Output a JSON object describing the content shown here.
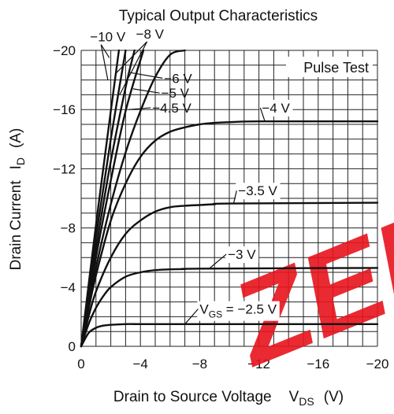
{
  "chart_data": {
    "type": "line",
    "title": "Typical Output Characteristics",
    "xlabel": {
      "text": "Drain to Source Voltage",
      "symbol": "V",
      "sub": "DS",
      "unit": "(V)"
    },
    "ylabel": {
      "text": "Drain Current",
      "symbol": "I",
      "sub": "D",
      "unit": "(A)"
    },
    "xlim": [
      0,
      -20
    ],
    "ylim": [
      0,
      -20
    ],
    "xticks": [
      0,
      -4,
      -8,
      -12,
      -16,
      -20
    ],
    "xtick_labels": [
      "0",
      "−4",
      "−8",
      "−12",
      "−16",
      "−20"
    ],
    "yticks": [
      0,
      -4,
      -8,
      -12,
      -16,
      -20
    ],
    "ytick_labels": [
      "0",
      "−4",
      "−8",
      "−12",
      "−16",
      "−20"
    ],
    "grid": true,
    "annotation": "Pulse Test",
    "series": [
      {
        "name": "V_GS = −2.5 V",
        "label": {
          "main": "V",
          "sub": "GS",
          "rest": " = −2.5 V"
        },
        "x": [
          0,
          -0.5,
          -1,
          -1.5,
          -2,
          -3,
          -4,
          -6,
          -20
        ],
        "y": [
          0,
          -0.9,
          -1.25,
          -1.4,
          -1.45,
          -1.5,
          -1.5,
          -1.5,
          -1.5
        ]
      },
      {
        "name": "−3 V",
        "label": "−3 V",
        "x": [
          0,
          -0.5,
          -1,
          -1.5,
          -2,
          -3,
          -4,
          -5,
          -6,
          -7,
          -8,
          -20
        ],
        "y": [
          0,
          -1.5,
          -2.6,
          -3.4,
          -4.0,
          -4.7,
          -5.0,
          -5.15,
          -5.2,
          -5.22,
          -5.25,
          -5.3
        ]
      },
      {
        "name": "−3.5 V",
        "label": "−3.5 V",
        "x": [
          0,
          -0.5,
          -1,
          -2,
          -3,
          -4,
          -5,
          -6,
          -7,
          -8,
          -9,
          -10,
          -20
        ],
        "y": [
          0,
          -2.0,
          -3.7,
          -6.0,
          -7.6,
          -8.5,
          -9.1,
          -9.4,
          -9.5,
          -9.55,
          -9.6,
          -9.65,
          -9.7
        ]
      },
      {
        "name": "−4 V",
        "label": "−4 V",
        "x": [
          0,
          -0.5,
          -1,
          -2,
          -3,
          -4,
          -5,
          -6,
          -7,
          -8,
          -9,
          -10,
          -12,
          -20
        ],
        "y": [
          0,
          -2.5,
          -4.8,
          -8.5,
          -11.0,
          -12.8,
          -13.9,
          -14.5,
          -14.8,
          -15.0,
          -15.1,
          -15.15,
          -15.2,
          -15.2
        ]
      },
      {
        "name": "−4.5 V",
        "label": "−4.5 V",
        "x": [
          0,
          -1,
          -2,
          -3,
          -4,
          -5,
          -6,
          -7
        ],
        "y": [
          0,
          -5.3,
          -9.6,
          -13.1,
          -15.9,
          -18.2,
          -19.7,
          -20
        ]
      },
      {
        "name": "−5 V",
        "label": "−5 V",
        "x": [
          0,
          -1,
          -2,
          -3,
          -4.2
        ],
        "y": [
          0,
          -6.0,
          -11.2,
          -15.9,
          -20
        ]
      },
      {
        "name": "−6 V",
        "label": "−6 V",
        "x": [
          0,
          -1,
          -2,
          -3,
          -3.6
        ],
        "y": [
          0,
          -6.6,
          -12.5,
          -17.5,
          -20
        ]
      },
      {
        "name": "−8 V",
        "label": "−8 V",
        "x": [
          0,
          -1,
          -2,
          -3.0
        ],
        "y": [
          0,
          -7.4,
          -14.0,
          -20
        ]
      },
      {
        "name": "−10 V",
        "label": "−10 V",
        "x": [
          0,
          -1,
          -2,
          -2.55
        ],
        "y": [
          0,
          -8.2,
          -15.9,
          -20
        ]
      }
    ],
    "label_placement": [
      {
        "series": 0,
        "tx": -8.0,
        "ty": -2.2,
        "ax": -7.0,
        "ay": -1.5,
        "bg": true,
        "anchor": "start"
      },
      {
        "series": 1,
        "tx": -9.9,
        "ty": -5.9,
        "ax": -8.7,
        "ay": -5.3,
        "bg": true,
        "anchor": "start"
      },
      {
        "series": 2,
        "tx": -10.6,
        "ty": -10.2,
        "ax": -10.3,
        "ay": -9.7,
        "bg": true,
        "anchor": "start"
      },
      {
        "series": 3,
        "tx": -12.2,
        "ty": -15.8,
        "ax": -12.4,
        "ay": -15.2,
        "bg": true,
        "anchor": "start"
      },
      {
        "series": 4,
        "tx": -4.8,
        "ty": -15.8,
        "ax": -3.2,
        "ay": -16.0,
        "bg": false,
        "anchor": "start"
      },
      {
        "series": 5,
        "tx": -5.4,
        "ty": -16.8,
        "ax": -3.5,
        "ay": -17.4,
        "bg": false,
        "anchor": "start"
      },
      {
        "series": 6,
        "tx": -5.6,
        "ty": -17.8,
        "ax": -3.3,
        "ay": -18.5,
        "bg": false,
        "anchor": "start"
      },
      {
        "series": 7,
        "tx": -3.7,
        "ty": -20.8,
        "ax": -2.3,
        "ay": -18.4,
        "bg": false,
        "anchor": "start"
      },
      {
        "series": 8,
        "tx": -0.6,
        "ty": -20.6,
        "ax": -1.8,
        "ay": -18.0,
        "bg": false,
        "anchor": "start"
      }
    ],
    "extra_leaders": [
      {
        "series": 7,
        "ax": -2.6,
        "ay": -17.0
      },
      {
        "series": 8,
        "ax": -1.9,
        "ay": -19.5
      }
    ]
  },
  "watermark": {
    "text": "ZED",
    "color": "#e8141c"
  }
}
